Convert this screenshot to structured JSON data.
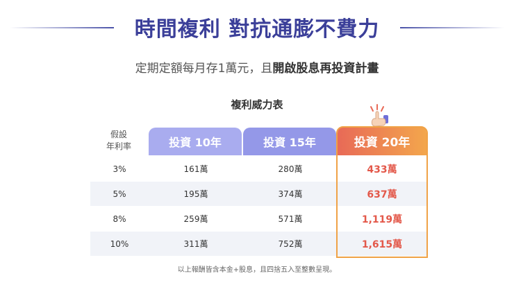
{
  "headline": "時間複利 對抗通膨不費力",
  "subhead": {
    "plain": "定期定額每月存1萬元，且",
    "bold": "開啟股息再投資計畫"
  },
  "table": {
    "title": "複利威力表",
    "row_header_line1": "假設",
    "row_header_line2": "年利率",
    "columns": [
      "投資 10年",
      "投資 15年",
      "投資 20年"
    ],
    "rows": [
      {
        "rate": "3%",
        "v10": "161萬",
        "v15": "280萬",
        "v20": "433萬"
      },
      {
        "rate": "5%",
        "v10": "195萬",
        "v15": "374萬",
        "v20": "637萬"
      },
      {
        "rate": "8%",
        "v10": "259萬",
        "v15": "571萬",
        "v20": "1,119萬"
      },
      {
        "rate": "10%",
        "v10": "311萬",
        "v15": "752萬",
        "v20": "1,615萬"
      }
    ],
    "highlight_color": "#f0a246",
    "value_highlight_color": "#e3584a"
  },
  "footnote": "以上報酬皆含本金+股息，且四捨五入至整數呈現。",
  "icons": {
    "pointer": "pointing-hand-icon"
  }
}
